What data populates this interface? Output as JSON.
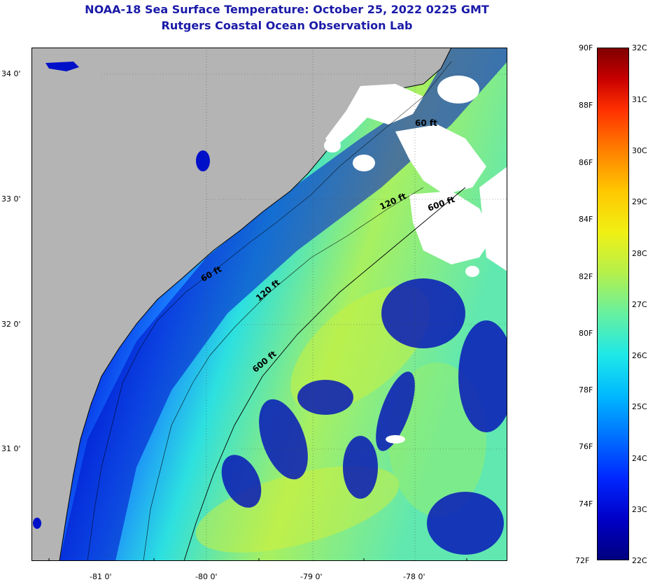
{
  "title": {
    "line1": "NOAA-18 Sea Surface Temperature:  October 25, 2022 0225 GMT",
    "line2": "Rutgers Coastal Ocean Observation Lab"
  },
  "map": {
    "lat_labels": [
      "34 0'",
      "33 0'",
      "32 0'",
      "31 0'"
    ],
    "lon_labels": [
      "-81 0'",
      "-80 0'",
      "-79 0'",
      "-78 0'"
    ],
    "contour_labels": [
      "60 ft",
      "120 ft",
      "600 ft",
      "60 ft",
      "120 ft",
      "600 ft"
    ],
    "colors": {
      "land": "#b4b4b4",
      "cloud": "#ffffff",
      "coast": "#000000"
    }
  },
  "colorbar": {
    "fahrenheit": [
      "90F",
      "88F",
      "86F",
      "84F",
      "82F",
      "80F",
      "78F",
      "76F",
      "74F",
      "72F"
    ],
    "celsius": [
      "32C",
      "31C",
      "30C",
      "29C",
      "28C",
      "27C",
      "26C",
      "25C",
      "24C",
      "23C",
      "22C"
    ]
  }
}
